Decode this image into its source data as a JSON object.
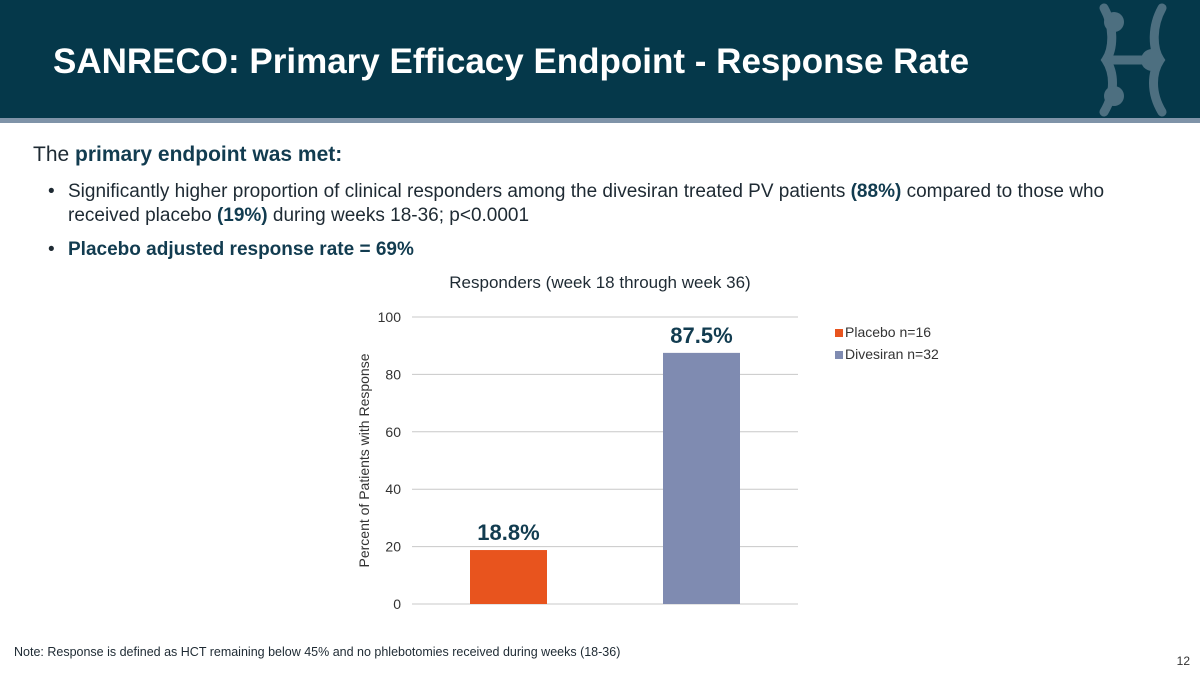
{
  "slide": {
    "title": "SANRECO: Primary Efficacy Endpoint - Response Rate",
    "intro": {
      "prefix": "The ",
      "bold": "primary endpoint was met:"
    },
    "bullets": {
      "first": {
        "text1": "Significantly higher proportion of clinical responders among the divesiran treated PV patients ",
        "bold1": "(88%)",
        "text2": " compared to those who received placebo ",
        "bold2": "(19%)",
        "text3": " during weeks 18-36; p<0.0001"
      },
      "second": {
        "bold": "Placebo adjusted response rate = 69%"
      }
    },
    "bullet_glyph": "•",
    "note": "Note: Response is defined as HCT remaining below 45% and no phlebotomies received during weeks (18-36)",
    "page_number": "12"
  },
  "chart_data": {
    "type": "bar",
    "title": "Responders (week 18 through week 36)",
    "ylabel": "Percent of Patients with Response",
    "xlabel": "",
    "ylim": [
      0,
      100
    ],
    "yticks": [
      0,
      20,
      40,
      60,
      80,
      100
    ],
    "grid": true,
    "legend_position": "right",
    "series": [
      {
        "name": "Placebo n=16",
        "value": 18.8,
        "label": "18.8%",
        "color": "#e8541e"
      },
      {
        "name": "Divesiran n=32",
        "value": 87.5,
        "label": "87.5%",
        "color": "#7f8bb1"
      }
    ]
  },
  "colors": {
    "header": "#05384a",
    "header_rule": "#7f93a8",
    "emphasis_text": "#123c50"
  }
}
